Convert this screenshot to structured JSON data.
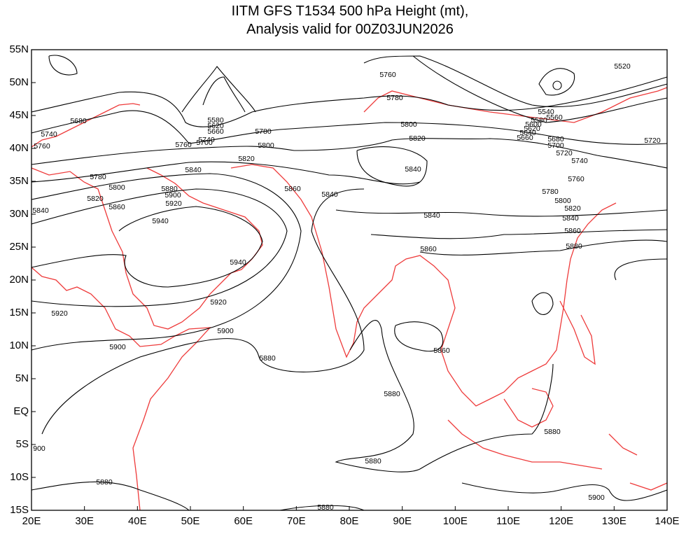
{
  "title": "IITM GFS T1534 500 hPa Height (mt),",
  "subtitle": "Analysis valid for 00Z03JUN2026",
  "map": {
    "lon_ticks": [
      {
        "value": 20,
        "label": "20E"
      },
      {
        "value": 30,
        "label": "30E"
      },
      {
        "value": 40,
        "label": "40E"
      },
      {
        "value": 50,
        "label": "50E"
      },
      {
        "value": 60,
        "label": "60E"
      },
      {
        "value": 70,
        "label": "70E"
      },
      {
        "value": 80,
        "label": "80E"
      },
      {
        "value": 90,
        "label": "90E"
      },
      {
        "value": 100,
        "label": "100E"
      },
      {
        "value": 110,
        "label": "110E"
      },
      {
        "value": 120,
        "label": "120E"
      },
      {
        "value": 130,
        "label": "130E"
      },
      {
        "value": 140,
        "label": "140E"
      }
    ],
    "lat_ticks": [
      {
        "value": 55,
        "label": "55N"
      },
      {
        "value": 50,
        "label": "50N"
      },
      {
        "value": 45,
        "label": "45N"
      },
      {
        "value": 40,
        "label": "40N"
      },
      {
        "value": 35,
        "label": "35N"
      },
      {
        "value": 30,
        "label": "30N"
      },
      {
        "value": 25,
        "label": "25N"
      },
      {
        "value": 20,
        "label": "20N"
      },
      {
        "value": 15,
        "label": "15N"
      },
      {
        "value": 10,
        "label": "10N"
      },
      {
        "value": 5,
        "label": "5N"
      },
      {
        "value": 0,
        "label": "EQ"
      },
      {
        "value": -5,
        "label": "5S"
      },
      {
        "value": -10,
        "label": "10S"
      },
      {
        "value": -15,
        "label": "15S"
      }
    ],
    "contour_labels": [
      5680,
      5740,
      5760,
      5780,
      5800,
      5820,
      5860,
      5840,
      5880,
      5900,
      5920,
      5940,
      5840,
      5760,
      5740,
      5780,
      5800,
      5820,
      5860,
      5840,
      5760,
      5780,
      5800,
      5820,
      5840,
      5840,
      5860,
      5940,
      5920,
      5900,
      5920,
      5900,
      5880,
      5880,
      5860,
      5880,
      5880,
      5880,
      900,
      5880,
      5900,
      5520,
      5540,
      5560,
      5580,
      5600,
      5620,
      5640,
      5660,
      5680,
      5700,
      5720,
      5740,
      5760,
      5780,
      5800,
      5820,
      5840,
      5860,
      5880,
      5720,
      5580,
      5620,
      5660,
      5700
    ]
  }
}
